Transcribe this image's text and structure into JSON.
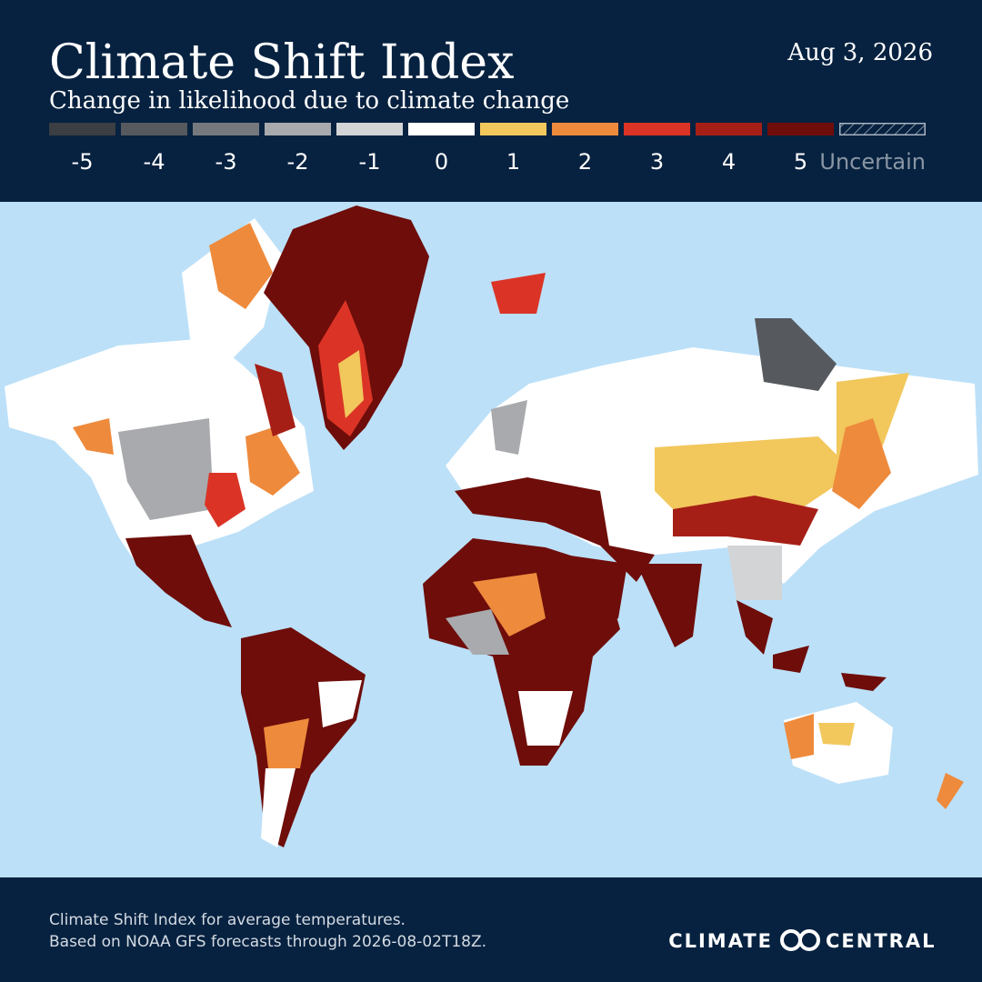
{
  "header": {
    "title": "Climate Shift Index",
    "subtitle": "Change in likelihood due to climate change",
    "date": "Aug 3, 2026"
  },
  "legend": {
    "items": [
      {
        "label": "-5",
        "color": "#3b3e43"
      },
      {
        "label": "-4",
        "color": "#56595e"
      },
      {
        "label": "-3",
        "color": "#75787c"
      },
      {
        "label": "-2",
        "color": "#a8aaad"
      },
      {
        "label": "-1",
        "color": "#d3d4d6"
      },
      {
        "label": "0",
        "color": "#ffffff"
      },
      {
        "label": "1",
        "color": "#f2c75c"
      },
      {
        "label": "2",
        "color": "#ee8a3c"
      },
      {
        "label": "3",
        "color": "#db3426"
      },
      {
        "label": "4",
        "color": "#a61f16"
      },
      {
        "label": "5",
        "color": "#6e0d0a"
      },
      {
        "label": "Uncertain",
        "pattern": "hatched"
      }
    ]
  },
  "footer": {
    "lines": [
      "Climate Shift Index for average temperatures.",
      "Based on NOAA GFS forecasts through 2026-08-02T18Z."
    ],
    "logo_left": "CLIMATE",
    "logo_right": "CENTRAL"
  }
}
